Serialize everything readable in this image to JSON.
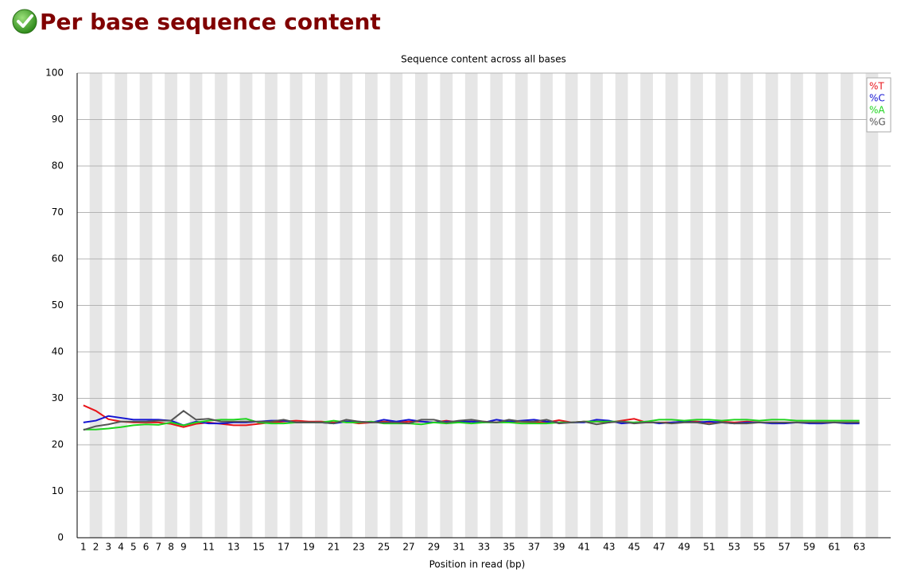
{
  "header": {
    "title": "Per base sequence content"
  },
  "chart_data": {
    "type": "line",
    "title": "Sequence content across all bases",
    "x_label": "Position in read (bp)",
    "categories": [
      "1",
      "2",
      "3",
      "4",
      "5",
      "6",
      "7",
      "8",
      "9",
      null,
      "11",
      null,
      "13",
      null,
      "15",
      null,
      "17",
      null,
      "19",
      null,
      "21",
      null,
      "23",
      null,
      "25",
      null,
      "27",
      null,
      "29",
      null,
      "31",
      null,
      "33",
      null,
      "35",
      null,
      "37",
      null,
      "39",
      null,
      "41",
      null,
      "43",
      null,
      "45",
      null,
      "47",
      null,
      "49",
      null,
      "51",
      null,
      "53",
      null,
      "55",
      null,
      "57",
      null,
      "59",
      null,
      "61",
      null,
      "63"
    ],
    "series": [
      {
        "name": "%T",
        "color": "#e8141a",
        "values": [
          28.5,
          27.3,
          25.5,
          25,
          24.8,
          24.8,
          24.8,
          24.5,
          23.8,
          24.5,
          24.8,
          24.5,
          24.2,
          24.2,
          24.5,
          24.8,
          25,
          25.2,
          25,
          25,
          24.8,
          25,
          24.6,
          24.8,
          25,
          24.8,
          25,
          25,
          24.8,
          25.2,
          24.8,
          25,
          25,
          24.8,
          25,
          25,
          24.8,
          24.8,
          25.3,
          24.8,
          25,
          25,
          24.8,
          25.2,
          25.6,
          24.8,
          24.8,
          24.8,
          25,
          25,
          24.8,
          25,
          24.8,
          25,
          24.8,
          24.8,
          24.8,
          24.8,
          24.8,
          24.8,
          24.8,
          24.8,
          24.8
        ]
      },
      {
        "name": "%C",
        "color": "#1414d2",
        "values": [
          24.8,
          25.2,
          26.2,
          25.8,
          25.4,
          25.4,
          25.4,
          25.2,
          24.2,
          25,
          24.6,
          24.6,
          24.8,
          24.8,
          25,
          25.2,
          25.2,
          24.8,
          24.8,
          24.8,
          24.6,
          25,
          25,
          24.8,
          25.4,
          25,
          25.4,
          25,
          24.8,
          25,
          25,
          25,
          24.8,
          25.4,
          25,
          25.2,
          25.4,
          25,
          24.8,
          24.8,
          24.8,
          25.4,
          25.2,
          24.6,
          24.8,
          25,
          24.6,
          24.8,
          25,
          24.8,
          25,
          24.8,
          24.6,
          24.8,
          24.8,
          24.6,
          24.6,
          24.8,
          24.6,
          24.6,
          24.8,
          24.6,
          24.6
        ]
      },
      {
        "name": "%A",
        "color": "#1ed41e",
        "values": [
          23.3,
          23.3,
          23.5,
          23.8,
          24.2,
          24.4,
          24.3,
          24.8,
          24.2,
          24.8,
          25.2,
          25.4,
          25.4,
          25.6,
          24.8,
          24.6,
          24.6,
          24.8,
          24.8,
          24.8,
          25.2,
          24.8,
          24.8,
          25,
          24.6,
          24.6,
          24.6,
          24.4,
          24.8,
          24.6,
          24.8,
          24.6,
          24.8,
          24.8,
          24.8,
          24.6,
          24.6,
          24.6,
          24.8,
          24.8,
          25,
          25,
          25,
          25,
          24.8,
          25,
          25.4,
          25.4,
          25.2,
          25.4,
          25.4,
          25.2,
          25.4,
          25.4,
          25.2,
          25.4,
          25.4,
          25.2,
          25.2,
          25.2,
          25.2,
          25.2,
          25.2
        ]
      },
      {
        "name": "%G",
        "color": "#555555",
        "values": [
          23.2,
          24,
          24.4,
          25,
          25,
          25,
          25.2,
          25.2,
          27.3,
          25.4,
          25.6,
          25,
          25,
          25,
          25,
          25,
          25.4,
          24.8,
          24.8,
          24.8,
          24.6,
          25.4,
          25,
          24.8,
          24.8,
          24.8,
          24.6,
          25.4,
          25.4,
          24.8,
          25.2,
          25.4,
          25,
          24.8,
          25.4,
          25,
          25,
          25.4,
          24.6,
          24.8,
          25,
          24.4,
          24.8,
          25,
          24.6,
          24.8,
          24.8,
          24.6,
          24.8,
          24.8,
          24.4,
          24.8,
          24.6,
          24.6,
          24.8,
          24.8,
          24.8,
          24.8,
          24.8,
          24.8,
          24.8,
          24.8,
          24.8
        ]
      }
    ],
    "ylim": [
      0,
      100
    ],
    "yticks": [
      0,
      10,
      20,
      30,
      40,
      50,
      60,
      70,
      80,
      90,
      100
    ],
    "grid": true,
    "legend": "upper right"
  }
}
